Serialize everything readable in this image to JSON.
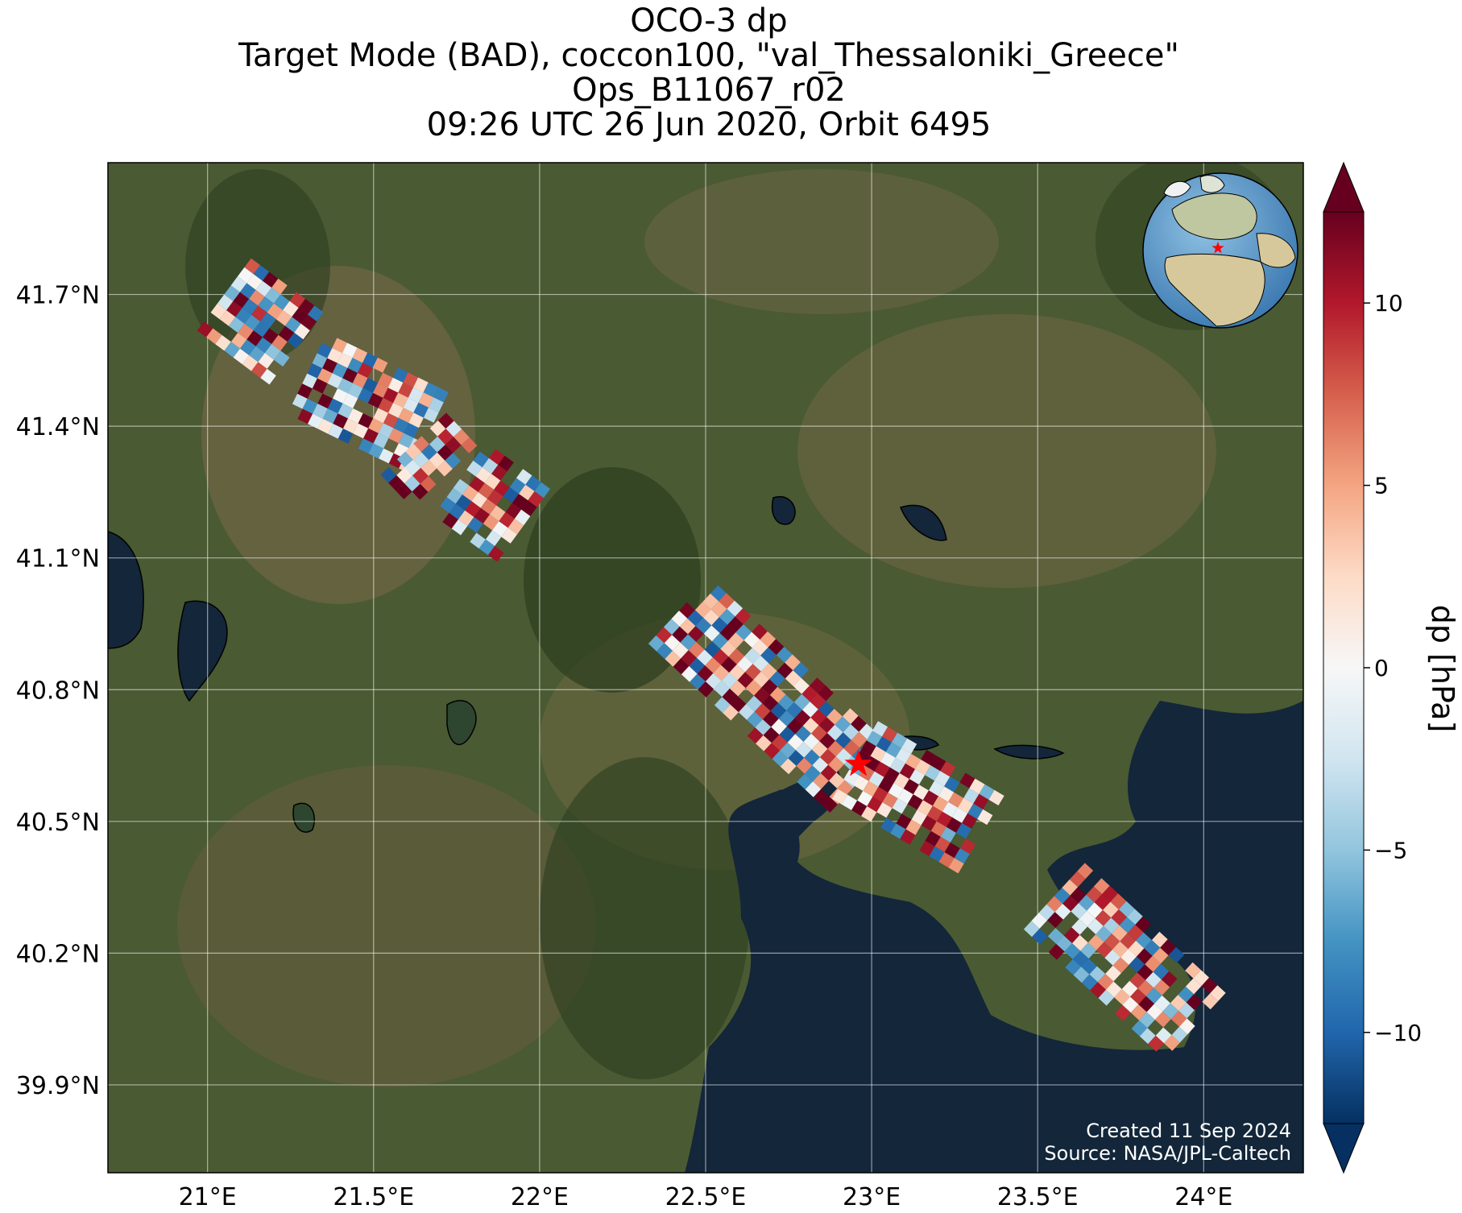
{
  "title": {
    "line1": "OCO-3 dp",
    "line2": "Target Mode (BAD), coccon100, \"val_Thessaloniki_Greece\"",
    "line3": "Ops_B11067_r02",
    "line4": "09:26 UTC 26 Jun 2020, Orbit 6495"
  },
  "map": {
    "lon_range": [
      20.7,
      24.3
    ],
    "lat_range": [
      39.7,
      42.0
    ],
    "lon_ticks": [
      {
        "value": 21.0,
        "label": "21°E"
      },
      {
        "value": 21.5,
        "label": "21.5°E"
      },
      {
        "value": 22.0,
        "label": "22°E"
      },
      {
        "value": 22.5,
        "label": "22.5°E"
      },
      {
        "value": 23.0,
        "label": "23°E"
      },
      {
        "value": 23.5,
        "label": "23.5°E"
      },
      {
        "value": 24.0,
        "label": "24°E"
      }
    ],
    "lat_ticks": [
      {
        "value": 41.7,
        "label": "41.7°N"
      },
      {
        "value": 41.4,
        "label": "41.4°N"
      },
      {
        "value": 41.1,
        "label": "41.1°N"
      },
      {
        "value": 40.8,
        "label": "40.8°N"
      },
      {
        "value": 40.5,
        "label": "40.5°N"
      },
      {
        "value": 40.2,
        "label": "40.2°N"
      },
      {
        "value": 39.9,
        "label": "39.9°N"
      }
    ],
    "target_marker": {
      "name": "val_Thessaloniki_Greece",
      "lon": 22.96,
      "lat": 40.63,
      "color": "#ff0000"
    },
    "land_color": "#4a5a32",
    "water_color": "#13263a"
  },
  "swath_segments": [
    {
      "lon_start": 21.05,
      "lat_start": 41.7,
      "lon_end": 21.28,
      "lat_end": 41.57
    },
    {
      "lon_start": 21.3,
      "lat_start": 41.52,
      "lon_end": 21.68,
      "lat_end": 41.38
    },
    {
      "lon_start": 21.62,
      "lat_start": 41.36,
      "lon_end": 21.72,
      "lat_end": 41.28
    },
    {
      "lon_start": 21.76,
      "lat_start": 41.28,
      "lon_end": 21.96,
      "lat_end": 41.17
    },
    {
      "lon_start": 22.42,
      "lat_start": 40.98,
      "lon_end": 22.96,
      "lat_end": 40.6
    },
    {
      "lon_start": 22.95,
      "lat_start": 40.64,
      "lon_end": 23.33,
      "lat_end": 40.47
    },
    {
      "lon_start": 23.55,
      "lat_start": 40.33,
      "lon_end": 23.98,
      "lat_end": 40.03
    }
  ],
  "colorbar": {
    "label": "dp [hPa]",
    "vmin": -12.5,
    "vmax": 12.5,
    "ticks": [
      {
        "value": 10,
        "label": "10"
      },
      {
        "value": 5,
        "label": "5"
      },
      {
        "value": 0,
        "label": "0"
      },
      {
        "value": -5,
        "label": "−5"
      },
      {
        "value": -10,
        "label": "−10"
      }
    ],
    "colormap": "RdBu_r",
    "extend": "both"
  },
  "credits": {
    "created": "Created 11 Sep 2024",
    "source": "Source: NASA/JPL-Caltech"
  }
}
